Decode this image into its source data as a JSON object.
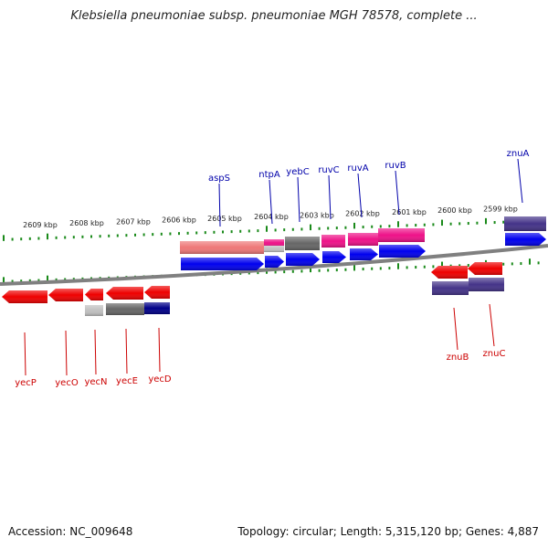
{
  "title": "Klebsiella pneumoniae subsp. pneumoniae MGH 78578, complete ...",
  "footer": {
    "accession": "Accession: NC_009648",
    "summary": "Topology: circular; Length: 5,315,120 bp; Genes: 4,887"
  },
  "scale_labels": [
    "2609 kbp",
    "2608 kbp",
    "2607 kbp",
    "2606 kbp",
    "2605 kbp",
    "2604 kbp",
    "2603 kbp",
    "2602 kbp",
    "2601 kbp",
    "2600 kbp",
    "2599 kbp"
  ],
  "top_genes": [
    "aspS",
    "ntpA",
    "yebC",
    "ruvC",
    "ruvA",
    "ruvB",
    "znuA"
  ],
  "bottom_genes": [
    "yecP",
    "yecO",
    "yecN",
    "yecE",
    "yecD",
    "znuB",
    "znuC"
  ],
  "colors": {
    "cds": "#0000ee",
    "gene_forward": "#ee0000",
    "label_top": "#0000aa",
    "label_bottom": "#cc0000",
    "tick": "#1a8a1a",
    "backbone": "#808080",
    "pink": "#ee1188",
    "salmon": "#ee7777",
    "grey": "#666666",
    "navy": "#000088",
    "slate": "#443388",
    "light_grey": "#c0c0c0"
  }
}
